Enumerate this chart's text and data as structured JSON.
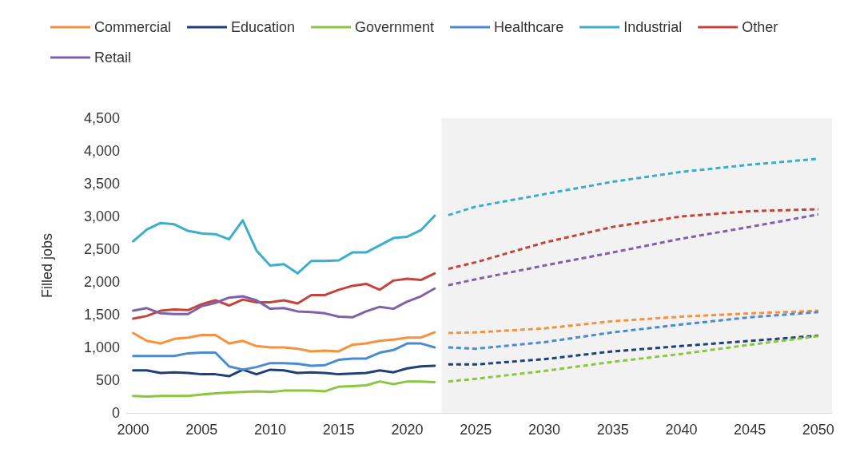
{
  "chart_data": {
    "type": "line",
    "ylabel": "Filled jobs",
    "legend": "top",
    "grid": false,
    "xlim": [
      1999.5,
      2051
    ],
    "xticks": [
      2000,
      2005,
      2010,
      2015,
      2020,
      2025,
      2030,
      2035,
      2040,
      2045,
      2050
    ],
    "ylim": [
      0,
      4500
    ],
    "yticks": [
      0,
      500,
      {
        "value": 1000,
        "label": "1,000"
      },
      {
        "value": 1500,
        "label": "1,500"
      },
      {
        "value": 2000,
        "label": "2,000"
      },
      {
        "value": 2500,
        "label": "2,500"
      },
      {
        "value": 3000,
        "label": "3,000"
      },
      {
        "value": 3500,
        "label": "3,500"
      },
      {
        "value": 4000,
        "label": "4,000"
      },
      {
        "value": 4500,
        "label": "4,500"
      }
    ],
    "bands": [
      {
        "axis": "x",
        "from": 2022.5,
        "to": 2051,
        "color": "#f2f2f2"
      }
    ],
    "series": [
      {
        "name": "Commercial",
        "color": "#f7913d",
        "line_style": "solid",
        "x": [
          2000,
          2001,
          2002,
          2003,
          2004,
          2005,
          2006,
          2007,
          2008,
          2009,
          2010,
          2011,
          2012,
          2013,
          2014,
          2015,
          2016,
          2017,
          2018,
          2019,
          2020,
          2021,
          2022
        ],
        "values": [
          1220,
          1100,
          1060,
          1130,
          1150,
          1190,
          1190,
          1060,
          1100,
          1020,
          1000,
          1000,
          980,
          940,
          950,
          940,
          1040,
          1060,
          1100,
          1120,
          1150,
          1150,
          1230
        ]
      },
      {
        "name": "Education",
        "color": "#1f3f7a",
        "line_style": "solid",
        "x": [
          2000,
          2001,
          2002,
          2003,
          2004,
          2005,
          2006,
          2007,
          2008,
          2009,
          2010,
          2011,
          2012,
          2013,
          2014,
          2015,
          2016,
          2017,
          2018,
          2019,
          2020,
          2021,
          2022
        ],
        "values": [
          650,
          650,
          610,
          620,
          610,
          590,
          590,
          560,
          660,
          590,
          660,
          650,
          610,
          620,
          610,
          590,
          600,
          610,
          650,
          620,
          680,
          710,
          720
        ]
      },
      {
        "name": "Government",
        "color": "#8cc63f",
        "line_style": "solid",
        "x": [
          2000,
          2001,
          2002,
          2003,
          2004,
          2005,
          2006,
          2007,
          2008,
          2009,
          2010,
          2011,
          2012,
          2013,
          2014,
          2015,
          2016,
          2017,
          2018,
          2019,
          2020,
          2021,
          2022
        ],
        "values": [
          260,
          250,
          260,
          260,
          260,
          280,
          300,
          310,
          320,
          330,
          320,
          340,
          340,
          340,
          330,
          400,
          410,
          420,
          480,
          440,
          480,
          480,
          470
        ]
      },
      {
        "name": "Healthcare",
        "color": "#4a8ad0",
        "line_style": "solid",
        "x": [
          2000,
          2001,
          2002,
          2003,
          2004,
          2005,
          2006,
          2007,
          2008,
          2009,
          2010,
          2011,
          2012,
          2013,
          2014,
          2015,
          2016,
          2017,
          2018,
          2019,
          2020,
          2021,
          2022
        ],
        "values": [
          870,
          870,
          870,
          870,
          910,
          920,
          920,
          710,
          660,
          700,
          760,
          760,
          750,
          720,
          730,
          810,
          830,
          830,
          920,
          960,
          1060,
          1060,
          1000
        ]
      },
      {
        "name": "Industrial",
        "color": "#3aaecb",
        "line_style": "solid",
        "x": [
          2000,
          2001,
          2002,
          2003,
          2004,
          2005,
          2006,
          2007,
          2008,
          2009,
          2010,
          2011,
          2012,
          2013,
          2014,
          2015,
          2016,
          2017,
          2018,
          2019,
          2020,
          2021,
          2022
        ],
        "values": [
          2620,
          2800,
          2900,
          2880,
          2780,
          2740,
          2730,
          2650,
          2940,
          2480,
          2250,
          2270,
          2130,
          2320,
          2320,
          2330,
          2450,
          2450,
          2560,
          2670,
          2690,
          2790,
          3010
        ]
      },
      {
        "name": "Other",
        "color": "#c4443c",
        "line_style": "solid",
        "x": [
          2000,
          2001,
          2002,
          2003,
          2004,
          2005,
          2006,
          2007,
          2008,
          2009,
          2010,
          2011,
          2012,
          2013,
          2014,
          2015,
          2016,
          2017,
          2018,
          2019,
          2020,
          2021,
          2022
        ],
        "values": [
          1440,
          1480,
          1560,
          1580,
          1570,
          1660,
          1720,
          1640,
          1730,
          1690,
          1690,
          1720,
          1670,
          1800,
          1800,
          1880,
          1940,
          1970,
          1880,
          2020,
          2050,
          2030,
          2130
        ]
      },
      {
        "name": "Retail",
        "color": "#8060a8",
        "line_style": "solid",
        "x": [
          2000,
          2001,
          2002,
          2003,
          2004,
          2005,
          2006,
          2007,
          2008,
          2009,
          2010,
          2011,
          2012,
          2013,
          2014,
          2015,
          2016,
          2017,
          2018,
          2019,
          2020,
          2021,
          2022
        ],
        "values": [
          1560,
          1600,
          1520,
          1510,
          1510,
          1630,
          1680,
          1760,
          1780,
          1720,
          1590,
          1600,
          1550,
          1540,
          1520,
          1470,
          1460,
          1550,
          1620,
          1590,
          1700,
          1780,
          1900
        ]
      },
      {
        "color": "#f7913d",
        "line_style": "dashed",
        "x": [
          2023,
          2025,
          2030,
          2035,
          2040,
          2045,
          2050
        ],
        "values": [
          1220,
          1230,
          1290,
          1400,
          1470,
          1520,
          1560
        ]
      },
      {
        "color": "#1f3f7a",
        "line_style": "dashed",
        "x": [
          2023,
          2025,
          2030,
          2035,
          2040,
          2045,
          2050
        ],
        "values": [
          740,
          740,
          820,
          940,
          1020,
          1100,
          1180
        ]
      },
      {
        "color": "#8cc63f",
        "line_style": "dashed",
        "x": [
          2023,
          2025,
          2030,
          2035,
          2040,
          2045,
          2050
        ],
        "values": [
          480,
          520,
          640,
          780,
          900,
          1040,
          1170
        ]
      },
      {
        "color": "#4a8ad0",
        "line_style": "dashed",
        "x": [
          2023,
          2025,
          2030,
          2035,
          2040,
          2045,
          2050
        ],
        "values": [
          1000,
          980,
          1080,
          1230,
          1350,
          1460,
          1540
        ]
      },
      {
        "color": "#3aaecb",
        "line_style": "dashed",
        "x": [
          2023,
          2025,
          2030,
          2035,
          2040,
          2045,
          2050
        ],
        "values": [
          3020,
          3150,
          3340,
          3530,
          3680,
          3790,
          3880
        ]
      },
      {
        "color": "#c4443c",
        "line_style": "dashed",
        "x": [
          2023,
          2025,
          2030,
          2035,
          2040,
          2045,
          2050
        ],
        "values": [
          2200,
          2300,
          2600,
          2840,
          3000,
          3080,
          3110
        ]
      },
      {
        "color": "#8060a8",
        "line_style": "dashed",
        "x": [
          2023,
          2025,
          2030,
          2035,
          2040,
          2045,
          2050
        ],
        "values": [
          1950,
          2040,
          2250,
          2450,
          2660,
          2840,
          3030
        ]
      }
    ]
  }
}
